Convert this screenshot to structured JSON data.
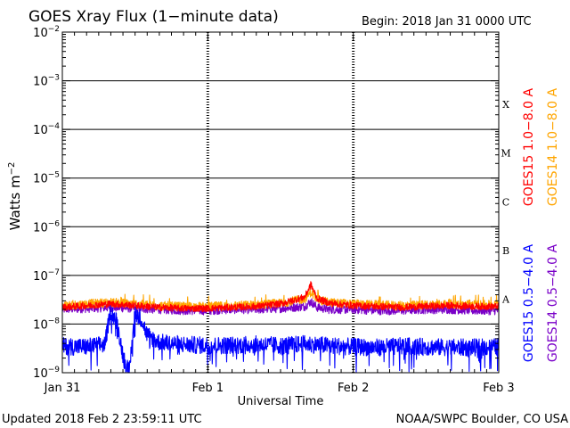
{
  "header": {
    "title": "GOES Xray Flux (1−minute data)",
    "begin": "Begin:  2018 Jan 31 0000 UTC"
  },
  "footer": {
    "updated": "Updated 2018 Feb  2 23:59:11 UTC",
    "credit": "NOAA/SWPC Boulder, CO USA"
  },
  "chart_data": {
    "type": "line",
    "title": "GOES Xray Flux (1−minute data)",
    "xlabel": "Universal Time",
    "ylabel": "Watts m⁻²",
    "yscale": "log",
    "ylim": [
      1e-09,
      0.01
    ],
    "xlim": [
      0,
      72
    ],
    "x_unit": "hours since 2018 Jan 31 0000 UTC",
    "x_ticks": [
      {
        "x": 0,
        "label": "Jan 31"
      },
      {
        "x": 24,
        "label": "Feb 1"
      },
      {
        "x": 48,
        "label": "Feb 2"
      },
      {
        "x": 72,
        "label": "Feb 3"
      }
    ],
    "y_ticks": [
      {
        "exp": -2,
        "base": "10",
        "sup": "−2"
      },
      {
        "exp": -3,
        "base": "10",
        "sup": "−3"
      },
      {
        "exp": -4,
        "base": "10",
        "sup": "−4"
      },
      {
        "exp": -5,
        "base": "10",
        "sup": "−5"
      },
      {
        "exp": -6,
        "base": "10",
        "sup": "−6"
      },
      {
        "exp": -7,
        "base": "10",
        "sup": "−7"
      },
      {
        "exp": -8,
        "base": "10",
        "sup": "−8"
      },
      {
        "exp": -9,
        "base": "10",
        "sup": "−9"
      }
    ],
    "flare_classes": [
      {
        "label": "X",
        "exp": -4
      },
      {
        "label": "M",
        "exp": -5
      },
      {
        "label": "C",
        "exp": -6
      },
      {
        "label": "B",
        "exp": -7
      },
      {
        "label": "A",
        "exp": -8
      }
    ],
    "grid": true,
    "legend_position": "right",
    "series": [
      {
        "name": "GOES15 1.0−8.0 A",
        "color": "#ff0000",
        "x": [
          0,
          4,
          8,
          12,
          16,
          20,
          24,
          28,
          32,
          36,
          40,
          41,
          42,
          44,
          48,
          52,
          56,
          60,
          64,
          68,
          72
        ],
        "y": [
          2.2e-08,
          2.4e-08,
          2.6e-08,
          2.4e-08,
          2.2e-08,
          2.1e-08,
          2.1e-08,
          2.2e-08,
          2.3e-08,
          2.6e-08,
          3.6e-08,
          6.5e-08,
          3.4e-08,
          2.7e-08,
          2.4e-08,
          2.3e-08,
          2.2e-08,
          2.3e-08,
          2.4e-08,
          2.3e-08,
          2.3e-08
        ]
      },
      {
        "name": "GOES14 1.0−8.0 A",
        "color": "#ffa500",
        "x": [
          0,
          4,
          8,
          12,
          16,
          20,
          24,
          28,
          32,
          36,
          40,
          41,
          42,
          44,
          48,
          52,
          56,
          60,
          64,
          68,
          72
        ],
        "y": [
          2.4e-08,
          2.6e-08,
          2.8e-08,
          2.6e-08,
          2.4e-08,
          2.3e-08,
          2.3e-08,
          2.4e-08,
          2.5e-08,
          2.7e-08,
          3.3e-08,
          4.5e-08,
          3.2e-08,
          2.8e-08,
          2.6e-08,
          2.5e-08,
          2.4e-08,
          2.5e-08,
          2.6e-08,
          2.5e-08,
          2.5e-08
        ]
      },
      {
        "name": "GOES15 0.5−4.0 A",
        "color": "#0000ff",
        "x": [
          0,
          4,
          7,
          8,
          9,
          10,
          11,
          12,
          13,
          14,
          16,
          20,
          24,
          28,
          32,
          36,
          40,
          44,
          48,
          52,
          56,
          60,
          64,
          68,
          72
        ],
        "y": [
          3.5e-09,
          3.4e-09,
          3.8e-09,
          1.9e-08,
          1.1e-08,
          2.3e-09,
          1e-09,
          1.8e-08,
          1.3e-08,
          6e-09,
          4.2e-09,
          3.8e-09,
          3.6e-09,
          3.7e-09,
          3.8e-09,
          3.6e-09,
          3.9e-09,
          3.6e-09,
          3.4e-09,
          3.3e-09,
          3.5e-09,
          3.4e-09,
          3.3e-09,
          3.3e-09,
          3.4e-09
        ]
      },
      {
        "name": "GOES14 0.5−4.0 A",
        "color": "#7a00c8",
        "x": [
          0,
          4,
          8,
          12,
          16,
          20,
          24,
          28,
          32,
          36,
          40,
          41,
          42,
          44,
          48,
          52,
          56,
          60,
          64,
          68,
          72
        ],
        "y": [
          2e-08,
          2.1e-08,
          2.2e-08,
          2.1e-08,
          2e-08,
          1.9e-08,
          1.9e-08,
          2e-08,
          2e-08,
          2.1e-08,
          2.3e-08,
          2.9e-08,
          2.2e-08,
          2e-08,
          2e-08,
          1.9e-08,
          1.9e-08,
          2e-08,
          2e-08,
          1.9e-08,
          1.9e-08
        ]
      }
    ]
  }
}
